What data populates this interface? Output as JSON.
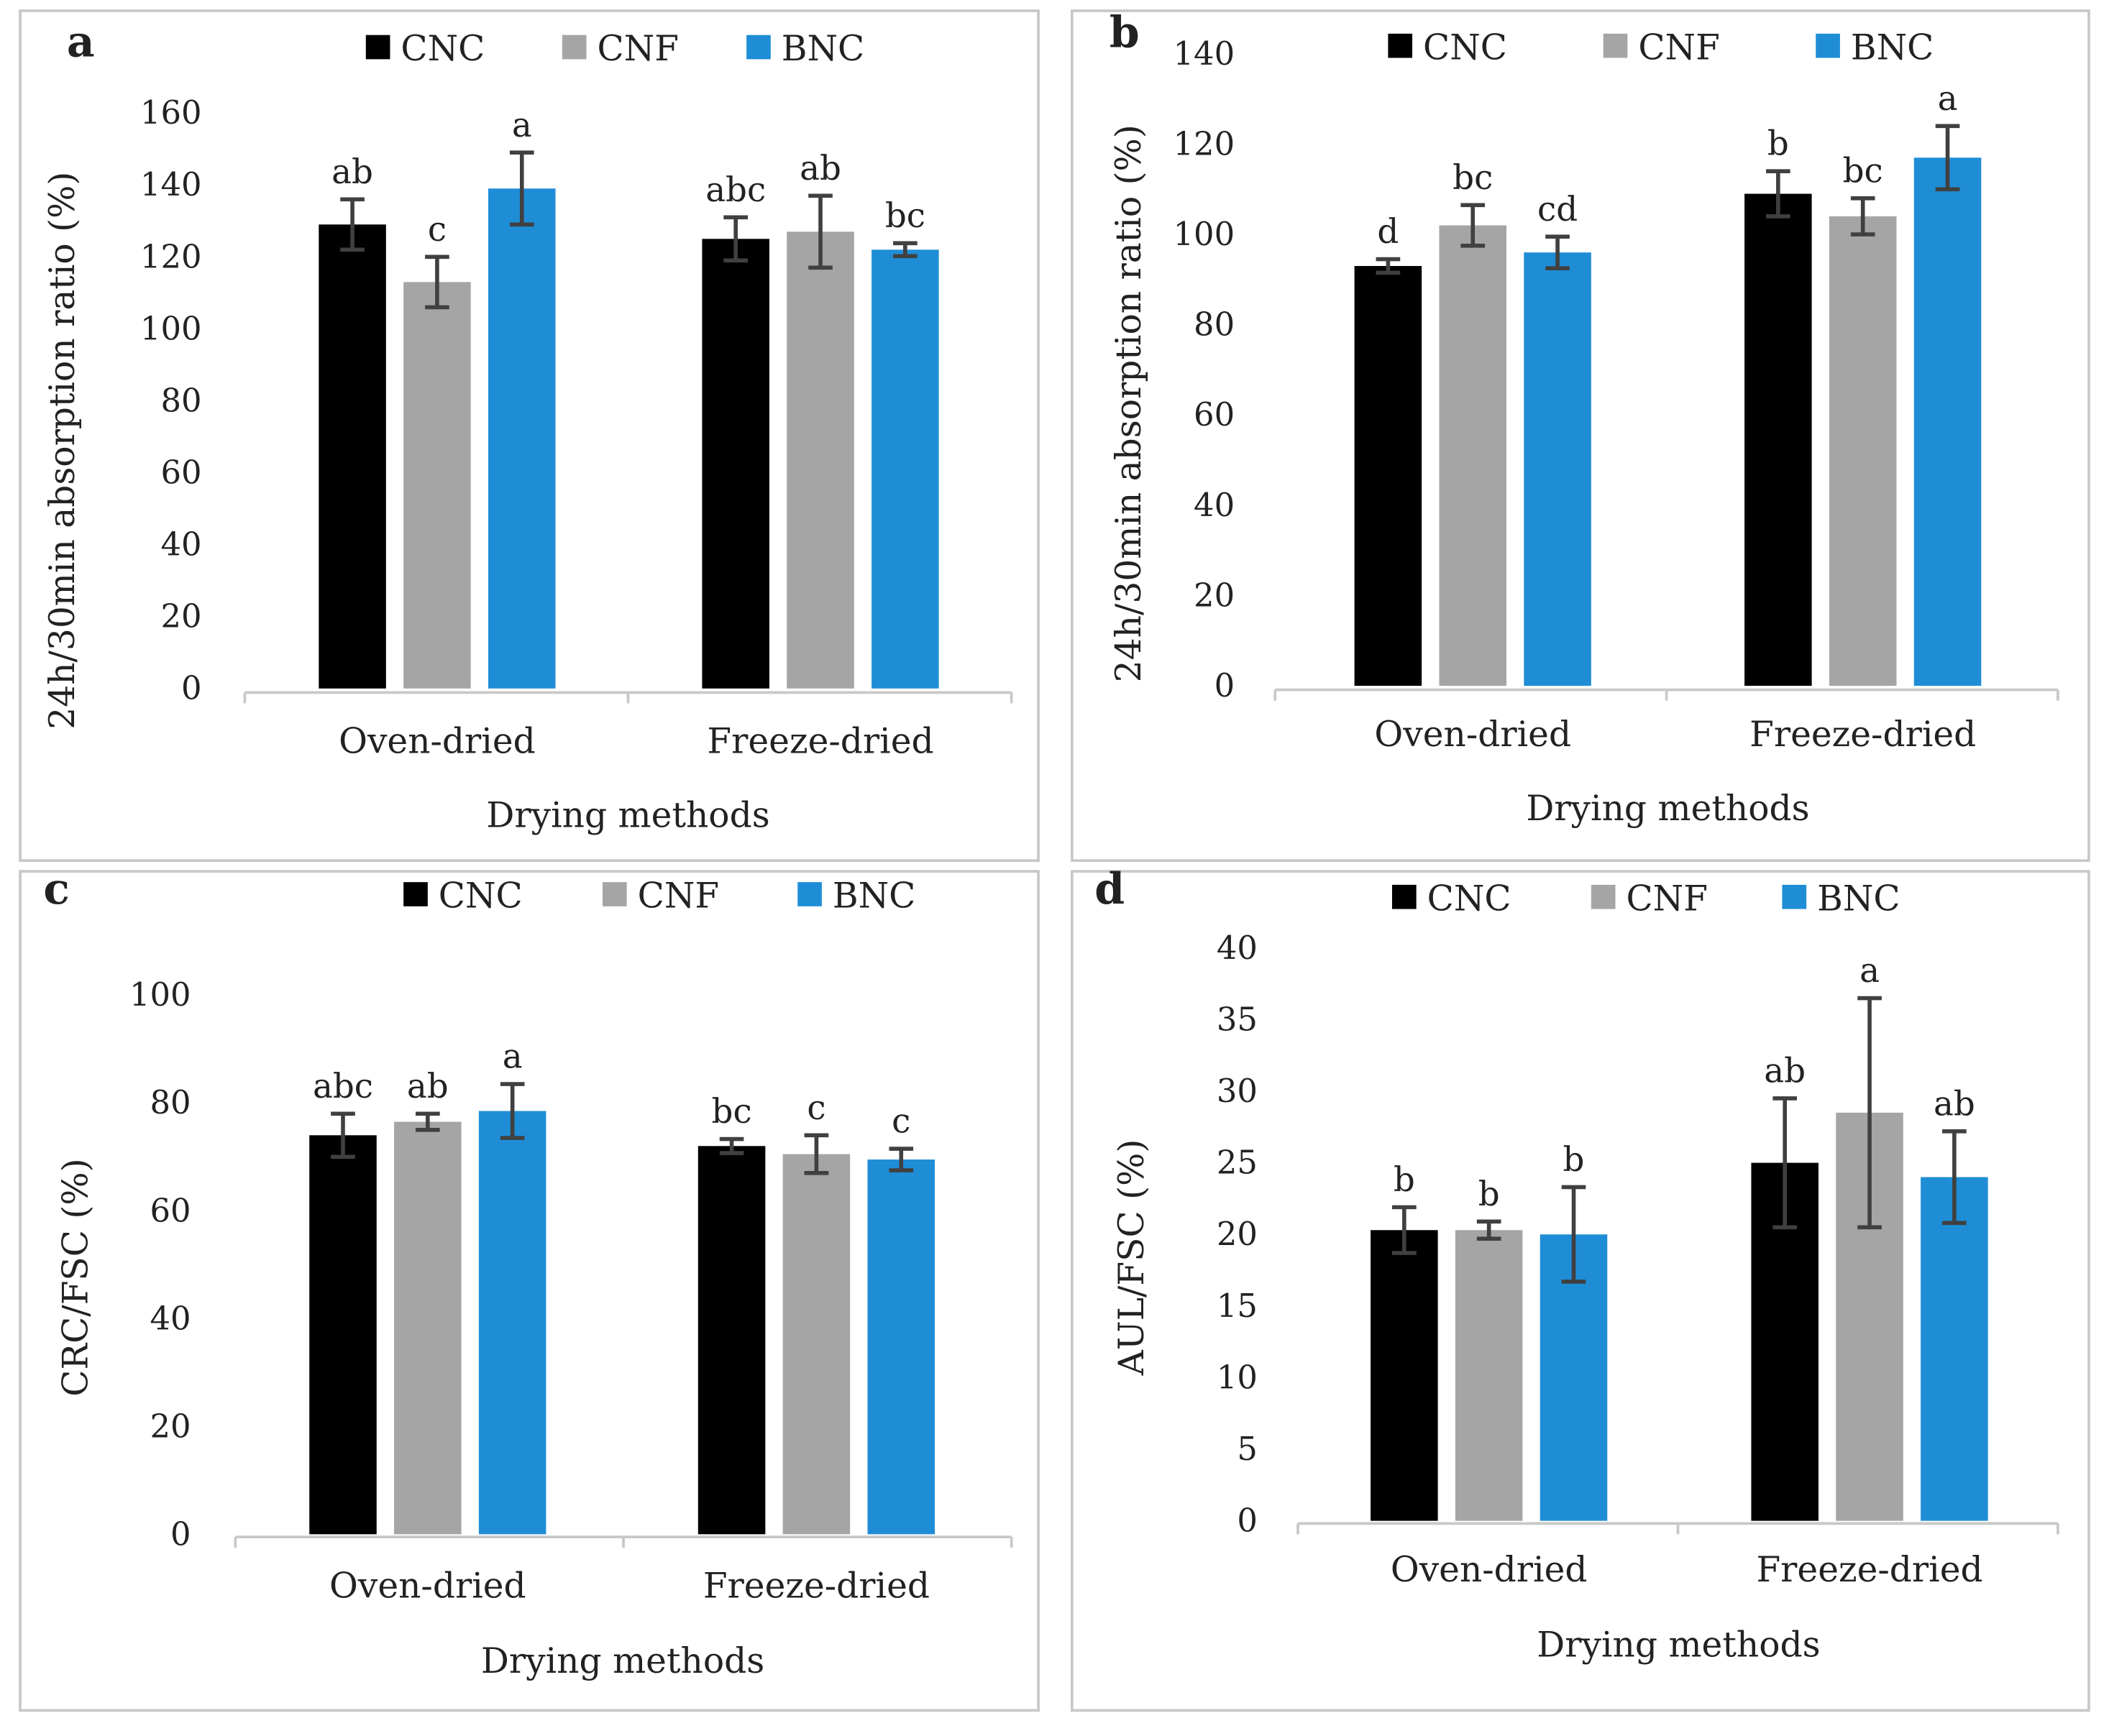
{
  "colors": {
    "CNC": "#000000",
    "CNF": "#a5a5a5",
    "BNC": "#1f8dd6",
    "error": "#404040",
    "axis": "#c8c8c8"
  },
  "chart_data": [
    {
      "type": "bar",
      "panel": "a",
      "legend": [
        "CNC",
        "CNF",
        "BNC"
      ],
      "legend_position": "top",
      "categories": [
        "Oven-dried",
        "Freeze-dried"
      ],
      "xlabel": "Drying methods",
      "ylabel": "24h/30min absorption ratio (%)",
      "ylim": [
        0,
        160
      ],
      "yticks": [
        0,
        20,
        40,
        60,
        80,
        100,
        120,
        140,
        160
      ],
      "series": [
        {
          "name": "CNC",
          "values": [
            129,
            125
          ],
          "errors": [
            7,
            6
          ],
          "letters": [
            "ab",
            "abc"
          ]
        },
        {
          "name": "CNF",
          "values": [
            113,
            127
          ],
          "errors": [
            7,
            10
          ],
          "letters": [
            "c",
            "ab"
          ]
        },
        {
          "name": "BNC",
          "values": [
            139,
            122
          ],
          "errors": [
            10,
            1.8
          ],
          "letters": [
            "a",
            "bc"
          ]
        }
      ]
    },
    {
      "type": "bar",
      "panel": "b",
      "legend": [
        "CNC",
        "CNF",
        "BNC"
      ],
      "legend_position": "top",
      "categories": [
        "Oven-dried",
        "Freeze-dried"
      ],
      "xlabel": "Drying methods",
      "ylabel": "24h/30min absorption ratio (%)",
      "ylim": [
        0,
        140
      ],
      "yticks": [
        0,
        20,
        40,
        60,
        80,
        100,
        120,
        140
      ],
      "series": [
        {
          "name": "CNC",
          "values": [
            93,
            109
          ],
          "errors": [
            1.5,
            5
          ],
          "letters": [
            "d",
            "b"
          ]
        },
        {
          "name": "CNF",
          "values": [
            102,
            104
          ],
          "errors": [
            4.5,
            4
          ],
          "letters": [
            "bc",
            "bc"
          ]
        },
        {
          "name": "BNC",
          "values": [
            96,
            117
          ],
          "errors": [
            3.5,
            7
          ],
          "letters": [
            "cd",
            "a"
          ]
        }
      ]
    },
    {
      "type": "bar",
      "panel": "c",
      "legend": [
        "CNC",
        "CNF",
        "BNC"
      ],
      "legend_position": "top",
      "categories": [
        "Oven-dried",
        "Freeze-dried"
      ],
      "xlabel": "Drying methods",
      "ylabel": "CRC/FSC (%)",
      "ylim": [
        0,
        100
      ],
      "yticks": [
        0,
        20,
        40,
        60,
        80,
        100
      ],
      "series": [
        {
          "name": "CNC",
          "values": [
            74,
            72
          ],
          "errors": [
            4,
            1.3
          ],
          "letters": [
            "abc",
            "bc"
          ]
        },
        {
          "name": "CNF",
          "values": [
            76.5,
            70.5
          ],
          "errors": [
            1.5,
            3.5
          ],
          "letters": [
            "ab",
            "c"
          ]
        },
        {
          "name": "BNC",
          "values": [
            78.5,
            69.5
          ],
          "errors": [
            5,
            2
          ],
          "letters": [
            "a",
            "c"
          ]
        }
      ]
    },
    {
      "type": "bar",
      "panel": "d",
      "legend": [
        "CNC",
        "CNF",
        "BNC"
      ],
      "legend_position": "top",
      "categories": [
        "Oven-dried",
        "Freeze-dried"
      ],
      "xlabel": "Drying methods",
      "ylabel": "AUL/FSC (%)",
      "ylim": [
        0,
        40
      ],
      "yticks": [
        0,
        5,
        10,
        15,
        20,
        25,
        30,
        35,
        40
      ],
      "series": [
        {
          "name": "CNC",
          "values": [
            20.3,
            25
          ],
          "errors": [
            1.6,
            4.5
          ],
          "letters": [
            "b",
            "ab"
          ]
        },
        {
          "name": "CNF",
          "values": [
            20.3,
            28.5
          ],
          "errors": [
            0.6,
            8
          ],
          "letters": [
            "b",
            "a"
          ]
        },
        {
          "name": "BNC",
          "values": [
            20,
            24
          ],
          "errors": [
            3.3,
            3.2
          ],
          "letters": [
            "b",
            "ab"
          ]
        }
      ]
    }
  ]
}
